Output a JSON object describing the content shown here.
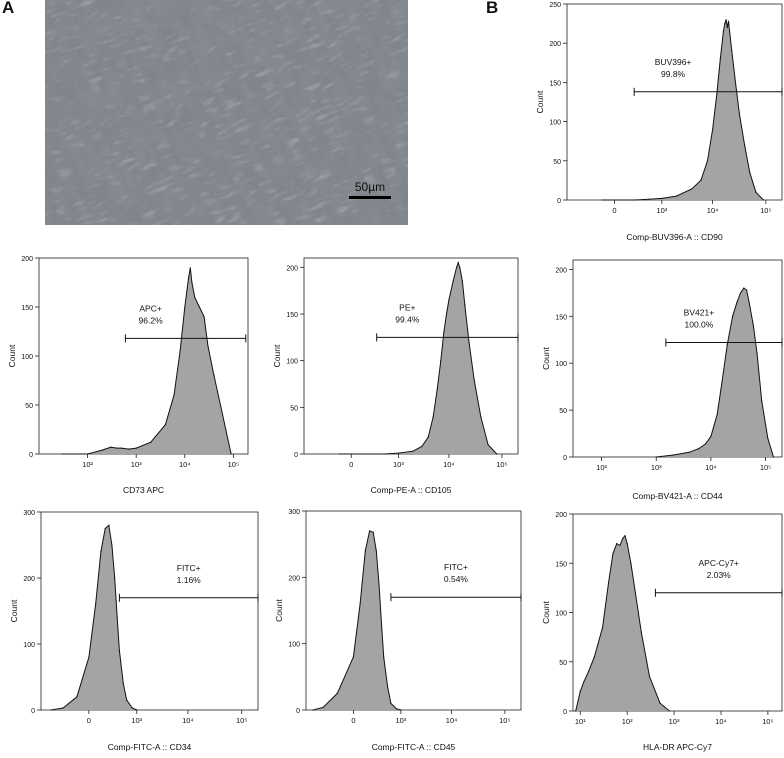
{
  "figure": {
    "panel_a_label": "A",
    "panel_b_label": "B"
  },
  "micrograph": {
    "scale_bar_label": "50µm"
  },
  "chart_data": [
    {
      "type": "area",
      "ylabel": "Count",
      "xlabel": "Comp-BUV396-A :: CD90",
      "ylim": [
        0,
        250
      ],
      "yticks": [
        0,
        50,
        100,
        150,
        200,
        250
      ],
      "xscale": "biexponential",
      "xlim": [
        -1000,
        200000
      ],
      "xticks": [
        {
          "value": 0,
          "label": "0"
        },
        {
          "value": 1000,
          "label": "10³"
        },
        {
          "value": 10000,
          "label": "10⁴"
        },
        {
          "value": 100000,
          "label": "10⁵"
        }
      ],
      "gate": {
        "name": "BUV396+",
        "percent": "99.8%",
        "x_range": [
          200,
          200000
        ],
        "y": 138
      },
      "peak_x": 18000,
      "peak_y": 230,
      "x": [
        -100,
        200,
        500,
        1000,
        2000,
        4000,
        6000,
        8000,
        10000,
        12000,
        14000,
        16000,
        17000,
        18000,
        19000,
        20000,
        23000,
        27000,
        32000,
        40000,
        50000,
        65000,
        90000
      ],
      "y": [
        0,
        0,
        1,
        2,
        5,
        14,
        25,
        50,
        90,
        135,
        180,
        215,
        225,
        230,
        220,
        228,
        190,
        150,
        110,
        70,
        35,
        10,
        0
      ]
    },
    {
      "type": "area",
      "ylabel": "Count",
      "xlabel": "CD73 APC",
      "ylim": [
        0,
        200
      ],
      "yticks": [
        0,
        50,
        100,
        150,
        200
      ],
      "xscale": "log",
      "xlim": [
        10,
        200000
      ],
      "xticks": [
        {
          "value": 100,
          "label": "10²"
        },
        {
          "value": 1000,
          "label": "10³"
        },
        {
          "value": 10000,
          "label": "10⁴"
        },
        {
          "value": 100000,
          "label": "10⁵"
        }
      ],
      "gate": {
        "name": "APC+",
        "percent": "96.2%",
        "x_range": [
          600,
          180000
        ],
        "y": 118
      },
      "x": [
        30,
        100,
        200,
        300,
        400,
        500,
        700,
        1000,
        2000,
        4000,
        6000,
        8000,
        10000,
        12000,
        13000,
        14000,
        16000,
        20000,
        25000,
        30000,
        40000,
        60000,
        90000
      ],
      "y": [
        0,
        0,
        4,
        7,
        6,
        6,
        5,
        6,
        12,
        30,
        60,
        105,
        150,
        180,
        190,
        175,
        160,
        150,
        140,
        110,
        80,
        40,
        0
      ]
    },
    {
      "type": "area",
      "ylabel": "Count",
      "xlabel": "Comp-PE-A :: CD105",
      "ylim": [
        0,
        210
      ],
      "yticks": [
        0,
        50,
        100,
        150,
        200
      ],
      "xscale": "biexponential",
      "xlim": [
        -1000,
        200000
      ],
      "xticks": [
        {
          "value": 0,
          "label": "0"
        },
        {
          "value": 1000,
          "label": "10³"
        },
        {
          "value": 10000,
          "label": "10⁴"
        },
        {
          "value": 100000,
          "label": "10⁵"
        }
      ],
      "gate": {
        "name": "PE+",
        "percent": "99.4%",
        "x_range": [
          300,
          200000
        ],
        "y": 125
      },
      "x": [
        -100,
        500,
        1000,
        2000,
        3000,
        4000,
        5000,
        6000,
        7000,
        8000,
        9000,
        10000,
        12000,
        14000,
        15000,
        16000,
        18000,
        20000,
        24000,
        30000,
        40000,
        55000,
        80000
      ],
      "y": [
        0,
        0,
        1,
        3,
        8,
        18,
        40,
        70,
        100,
        130,
        150,
        165,
        185,
        200,
        205,
        200,
        185,
        160,
        120,
        80,
        40,
        10,
        0
      ]
    },
    {
      "type": "area",
      "ylabel": "Count",
      "xlabel": "Comp-BV421-A :: CD44",
      "ylim": [
        0,
        210
      ],
      "yticks": [
        0,
        50,
        100,
        150,
        200
      ],
      "xscale": "log",
      "xlim": [
        30,
        200000
      ],
      "xticks": [
        {
          "value": 100,
          "label": "10²"
        },
        {
          "value": 1000,
          "label": "10³"
        },
        {
          "value": 10000,
          "label": "10⁴"
        },
        {
          "value": 100000,
          "label": "10⁵"
        }
      ],
      "gate": {
        "name": "BV421+",
        "percent": "100.0%",
        "x_range": [
          1500,
          200000
        ],
        "y": 122
      },
      "x": [
        1000,
        2000,
        4000,
        6000,
        8000,
        10000,
        13000,
        16000,
        20000,
        25000,
        30000,
        35000,
        40000,
        45000,
        50000,
        60000,
        70000,
        85000,
        110000,
        140000
      ],
      "y": [
        0,
        2,
        5,
        9,
        14,
        22,
        45,
        80,
        120,
        150,
        165,
        175,
        180,
        178,
        165,
        140,
        110,
        60,
        20,
        0
      ]
    },
    {
      "type": "area",
      "ylabel": "Count",
      "xlabel": "Comp-FITC-A :: CD34",
      "ylim": [
        0,
        300
      ],
      "yticks": [
        0,
        100,
        200,
        300
      ],
      "xscale": "biexponential",
      "xlim": [
        -1000,
        200000
      ],
      "xticks": [
        {
          "value": 0,
          "label": "0"
        },
        {
          "value": 1000,
          "label": "10³"
        },
        {
          "value": 10000,
          "label": "10⁴"
        },
        {
          "value": 100000,
          "label": "10⁵"
        }
      ],
      "gate": {
        "name": "FITC+",
        "percent": "1.16%",
        "x_range": [
          400,
          200000
        ],
        "y": 170
      },
      "x": [
        -600,
        -300,
        -100,
        0,
        50,
        100,
        150,
        200,
        250,
        300,
        350,
        400,
        500,
        600,
        800,
        1000
      ],
      "y": [
        0,
        3,
        20,
        80,
        160,
        240,
        275,
        280,
        250,
        200,
        140,
        90,
        40,
        15,
        3,
        0
      ]
    },
    {
      "type": "area",
      "ylabel": "Count",
      "xlabel": "Comp-FITC-A :: CD45",
      "ylim": [
        0,
        300
      ],
      "yticks": [
        0,
        100,
        200,
        300
      ],
      "xscale": "biexponential",
      "xlim": [
        -1000,
        200000
      ],
      "xticks": [
        {
          "value": 0,
          "label": "0"
        },
        {
          "value": 1000,
          "label": "10³"
        },
        {
          "value": 10000,
          "label": "10⁴"
        },
        {
          "value": 100000,
          "label": "10⁵"
        }
      ],
      "gate": {
        "name": "FITC+",
        "percent": "0.54%",
        "x_range": [
          600,
          200000
        ],
        "y": 170
      },
      "x": [
        -700,
        -400,
        -150,
        0,
        50,
        100,
        150,
        200,
        250,
        300,
        350,
        400,
        500,
        600,
        800,
        1000
      ],
      "y": [
        0,
        4,
        25,
        80,
        160,
        240,
        270,
        268,
        240,
        190,
        130,
        80,
        35,
        10,
        2,
        0
      ]
    },
    {
      "type": "area",
      "ylabel": "Count",
      "xlabel": "HLA-DR APC-Cy7",
      "ylim": [
        0,
        200
      ],
      "yticks": [
        0,
        50,
        100,
        150,
        200
      ],
      "xscale": "log",
      "xlim": [
        7,
        200000
      ],
      "xticks": [
        {
          "value": 10,
          "label": "10¹"
        },
        {
          "value": 100,
          "label": "10²"
        },
        {
          "value": 1000,
          "label": "10³"
        },
        {
          "value": 10000,
          "label": "10⁴"
        },
        {
          "value": 100000,
          "label": "10⁵"
        }
      ],
      "gate": {
        "name": "APC-Cy7+",
        "percent": "2.03%",
        "x_range": [
          400,
          200000
        ],
        "y": 120
      },
      "x": [
        8,
        10,
        12,
        15,
        20,
        30,
        40,
        50,
        60,
        70,
        80,
        90,
        100,
        120,
        150,
        200,
        300,
        500,
        800
      ],
      "y": [
        0,
        20,
        30,
        40,
        55,
        85,
        130,
        160,
        170,
        168,
        175,
        178,
        170,
        150,
        120,
        80,
        35,
        8,
        0
      ]
    }
  ]
}
